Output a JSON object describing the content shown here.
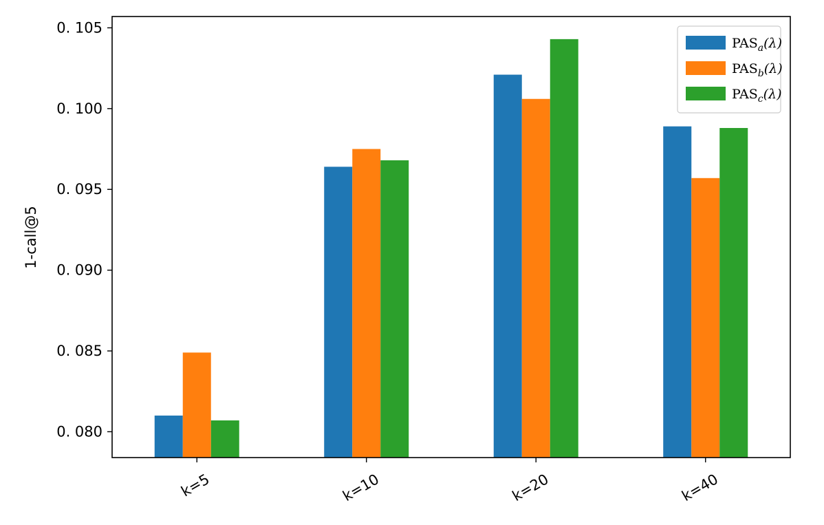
{
  "chart_data": {
    "type": "bar",
    "ylabel": "1-call@5",
    "categories": [
      "k=5",
      "k=10",
      "k=20",
      "k=40"
    ],
    "ylim": [
      0.0784,
      0.1057
    ],
    "yticks": [
      0.08,
      0.085,
      0.09,
      0.095,
      0.1,
      0.105
    ],
    "ytick_labels": [
      "0. 080",
      "0. 085",
      "0. 090",
      "0. 095",
      "0. 100",
      "0. 105"
    ],
    "grid": false,
    "legend_position": "top-right",
    "series": [
      {
        "name_main": "PAS",
        "name_sub": "a",
        "name_tail": "(λ)",
        "color": "#1f77b4",
        "values": [
          0.081,
          0.0964,
          0.1021,
          0.0989
        ]
      },
      {
        "name_main": "PAS",
        "name_sub": "b",
        "name_tail": "(λ)",
        "color": "#ff7f0e",
        "values": [
          0.0849,
          0.0975,
          0.1006,
          0.0957
        ]
      },
      {
        "name_main": "PAS",
        "name_sub": "c",
        "name_tail": "(λ)",
        "color": "#2ca02c",
        "values": [
          0.0807,
          0.0968,
          0.1043,
          0.0988
        ]
      }
    ]
  }
}
